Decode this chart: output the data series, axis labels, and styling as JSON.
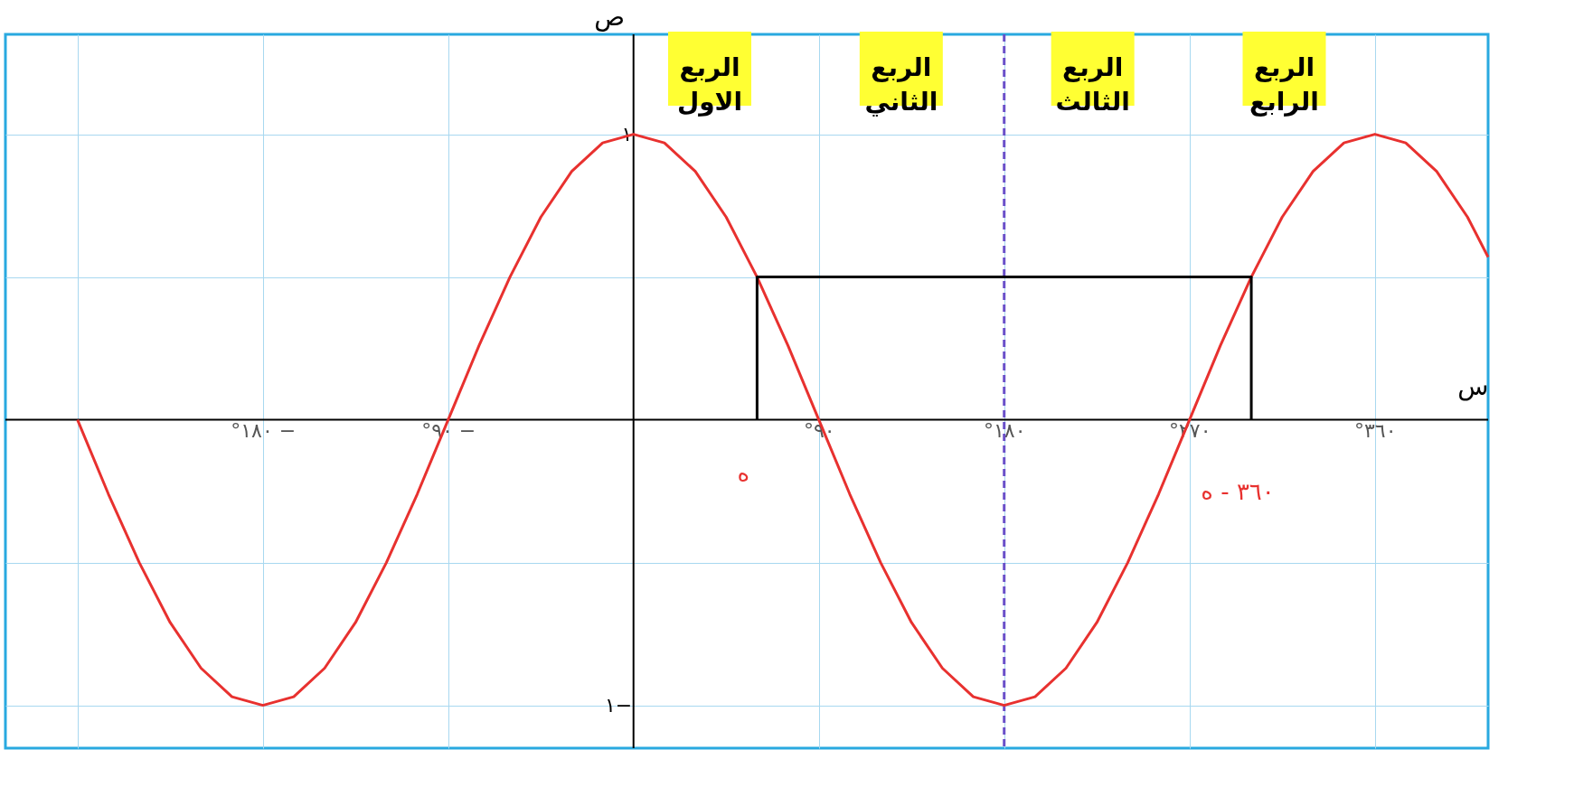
{
  "chart_data": {
    "type": "line",
    "xlabel": "س",
    "ylabel": "ص",
    "xlim": [
      -305,
      415
    ],
    "ylim": [
      -1.15,
      1.35
    ],
    "xticks": [
      {
        "value": -270,
        "label": null
      },
      {
        "value": -180,
        "label": "°١٨٠ −"
      },
      {
        "value": -90,
        "label": "°٩٠ −"
      },
      {
        "value": 90,
        "label": "°٩٠"
      },
      {
        "value": 180,
        "label": "°١٨٠"
      },
      {
        "value": 270,
        "label": "°٢٧٠"
      },
      {
        "value": 360,
        "label": "°٣٦٠"
      }
    ],
    "yticks": [
      {
        "value": -1,
        "label": "١−"
      },
      {
        "value": -0.5,
        "label": null
      },
      {
        "value": 0.5,
        "label": null
      },
      {
        "value": 1,
        "label": "١"
      }
    ],
    "grid": true,
    "line_style": "solid",
    "series": [
      {
        "color": "#e8312f",
        "x": [
          -270,
          -255,
          -240,
          -225,
          -210,
          -195,
          -180,
          -165,
          -150,
          -135,
          -120,
          -105,
          -90,
          -75,
          -60,
          -45,
          -30,
          -15,
          0,
          15,
          30,
          45,
          60,
          75,
          90,
          105,
          120,
          135,
          150,
          165,
          180,
          195,
          210,
          225,
          240,
          255,
          270,
          285,
          300,
          315,
          330,
          345,
          360,
          375,
          390,
          405,
          415
        ],
        "values": [
          0,
          -0.26,
          -0.5,
          -0.71,
          -0.87,
          -0.97,
          -1,
          -0.97,
          -0.87,
          -0.71,
          -0.5,
          -0.26,
          0,
          0.26,
          0.5,
          0.71,
          0.87,
          0.97,
          1,
          0.97,
          0.87,
          0.71,
          0.5,
          0.26,
          0,
          -0.26,
          -0.5,
          -0.71,
          -0.87,
          -0.97,
          -1,
          -0.97,
          -0.87,
          -0.71,
          -0.5,
          -0.26,
          0,
          0.26,
          0.5,
          0.71,
          0.87,
          0.97,
          1,
          0.97,
          0.87,
          0.71,
          0.57
        ]
      },
      {
        "color": "#000000",
        "x": [
          60,
          60,
          300,
          300
        ],
        "values": [
          0,
          0.5,
          0.5,
          0
        ]
      }
    ],
    "ref_lines": [
      {
        "axis": "x",
        "value": 180,
        "color": "#6a4fc9",
        "line_style": "dashed"
      }
    ],
    "annotations": [
      "الربع\nالاول",
      "الربع\nالثاني",
      "الربع\nالثالث",
      "الربع\nالرابع",
      {
        "text": "ه",
        "x": 60,
        "y": 0
      },
      {
        "text": "٣٦٠ - ه",
        "x": 300,
        "y": 0
      }
    ]
  }
}
